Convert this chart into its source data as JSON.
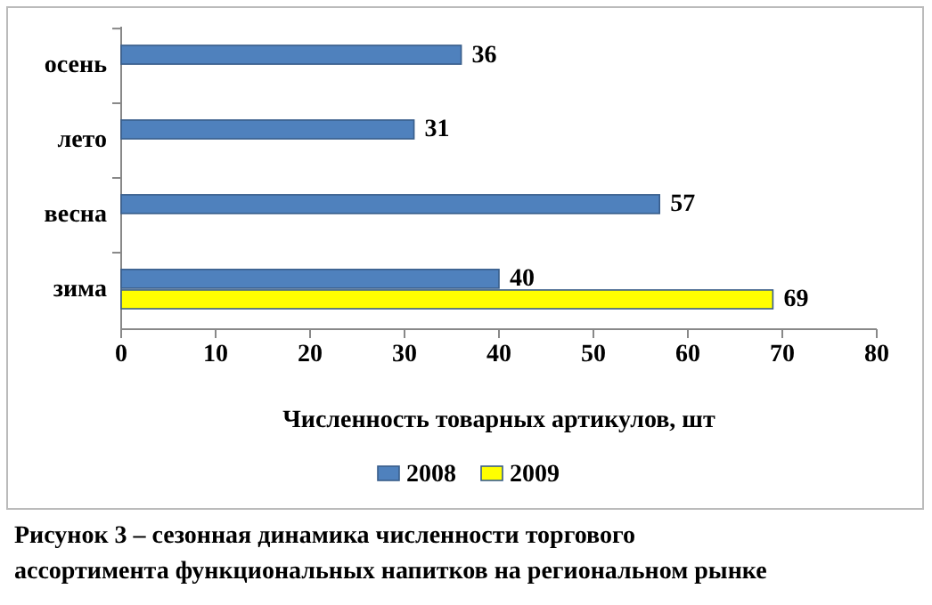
{
  "chart_data": {
    "type": "bar",
    "orientation": "horizontal",
    "categories": [
      "осень",
      "лето",
      "весна",
      "зима"
    ],
    "series": [
      {
        "name": "2008",
        "color": "#4f81bd",
        "values": [
          36,
          31,
          57,
          40
        ]
      },
      {
        "name": "2009",
        "color": "#ffff00",
        "values": [
          null,
          null,
          null,
          69
        ]
      }
    ],
    "xlim": [
      0,
      80
    ],
    "xticks": [
      0,
      10,
      20,
      30,
      40,
      50,
      60,
      70,
      80
    ],
    "xlabel": "Численность товарных артикулов, шт",
    "data_labels": true,
    "legend": "bottom",
    "grid": false,
    "annotations": [
      "Рисунок 3 – сезонная динамика численности торгового ассортимента функциональных напитков на региональном рынке"
    ]
  }
}
